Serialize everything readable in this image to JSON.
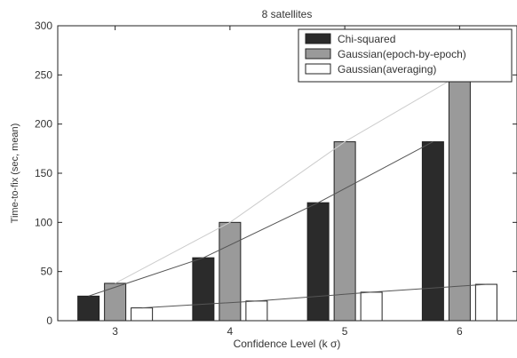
{
  "chart_data": {
    "type": "bar",
    "title": "8 satellites",
    "xlabel": "Confidence Level (k σ)",
    "ylabel": "Time-to-fix (sec, mean)",
    "categories": [
      "3",
      "4",
      "5",
      "6"
    ],
    "ylim": [
      0,
      300
    ],
    "yticks": [
      0,
      50,
      100,
      150,
      200,
      250,
      300
    ],
    "grid": false,
    "legend_position": "top-right",
    "series": [
      {
        "name": "Chi-squared",
        "values": [
          25,
          64,
          120,
          182
        ],
        "color": "#2b2b2b"
      },
      {
        "name": "Gaussian(epoch-by-epoch)",
        "values": [
          38,
          100,
          182,
          250
        ],
        "color": "#9a9a9a"
      },
      {
        "name": "Gaussian(averaging)",
        "values": [
          13,
          20,
          29,
          37
        ],
        "color": "#ffffff"
      }
    ],
    "trend_lines": [
      {
        "values": [
          25,
          64,
          120,
          182
        ],
        "color": "#555555"
      },
      {
        "values": [
          38,
          100,
          182,
          250
        ],
        "color": "#cccccc"
      },
      {
        "values": [
          13,
          20,
          29,
          37
        ],
        "color": "#555555"
      }
    ]
  }
}
